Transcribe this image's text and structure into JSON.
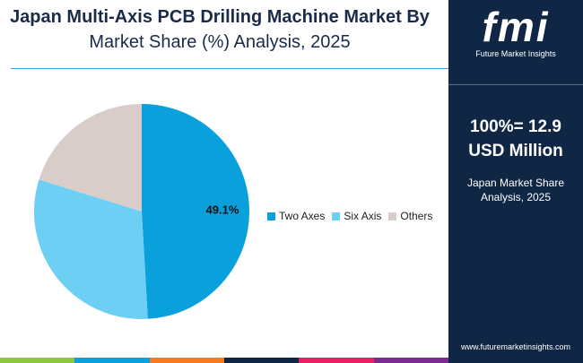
{
  "header": {
    "title_line1": "Japan Multi-Axis PCB Drilling Machine Market By",
    "title_line2": "Market Share (%) Analysis, 2025"
  },
  "sidebar": {
    "logo_mark": "fmi",
    "logo_text": "Future Market Insights",
    "total_line1": "100%= 12.9",
    "total_line2": "USD Million",
    "caption_line1": "Japan Market Share",
    "caption_line2": "Analysis, 2025",
    "url": "www.futuremarketinsights.com",
    "background": "#0f2645"
  },
  "chart_data": {
    "type": "pie",
    "categories": [
      "Two Axes",
      "Six Axis",
      "Others"
    ],
    "values": [
      49.1,
      30.7,
      20.2
    ],
    "colors": [
      "#0aa0db",
      "#6ecff5",
      "#d8cdc8"
    ],
    "data_labels": [
      "49.1%",
      "",
      ""
    ],
    "legend_position": "right"
  },
  "footer_colors": [
    "#8dc63f",
    "#0aa0db",
    "#f47920",
    "#0f2645",
    "#e91e63",
    "#7b2c91"
  ]
}
